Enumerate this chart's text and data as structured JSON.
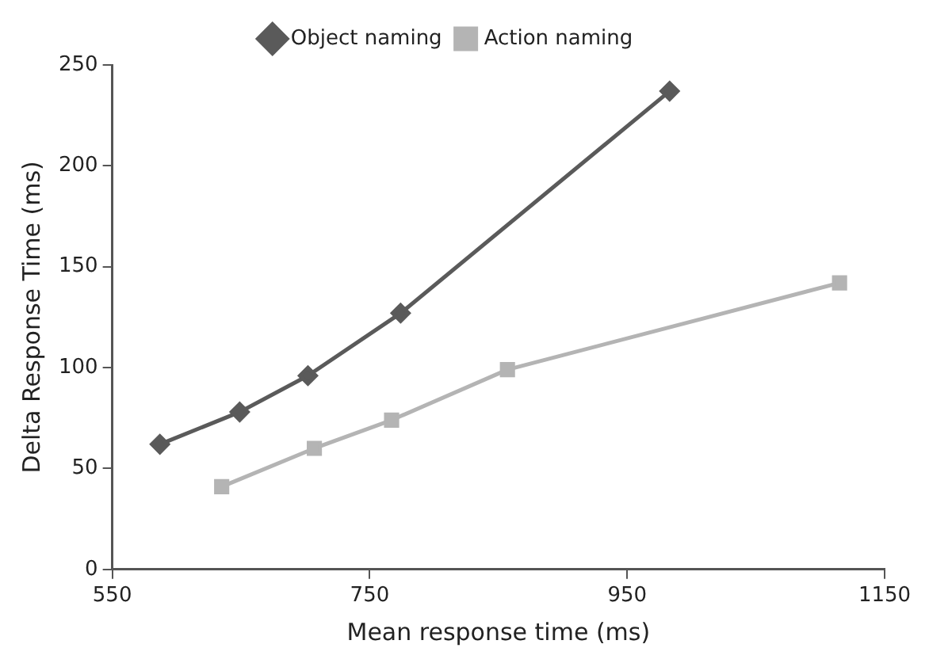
{
  "chart_data": {
    "type": "line",
    "xlabel": "Mean response time (ms)",
    "ylabel": "Delta Response Time (ms)",
    "xlim": [
      550,
      1150
    ],
    "xticks": [
      550,
      750,
      950,
      1150
    ],
    "ylim": [
      0,
      250
    ],
    "yticks": [
      0,
      50,
      100,
      150,
      200,
      250
    ],
    "grid": false,
    "legend": "top",
    "series": [
      {
        "name": "Object naming",
        "color": "#5a5a5a",
        "marker": "diamond",
        "x": [
          587,
          649,
          702,
          774,
          983
        ],
        "values": [
          62,
          78,
          96,
          127,
          237
        ]
      },
      {
        "name": "Action naming",
        "color": "#b4b4b4",
        "marker": "square",
        "x": [
          635,
          707,
          767,
          857,
          1115
        ],
        "values": [
          41,
          60,
          74,
          99,
          142
        ]
      }
    ]
  }
}
